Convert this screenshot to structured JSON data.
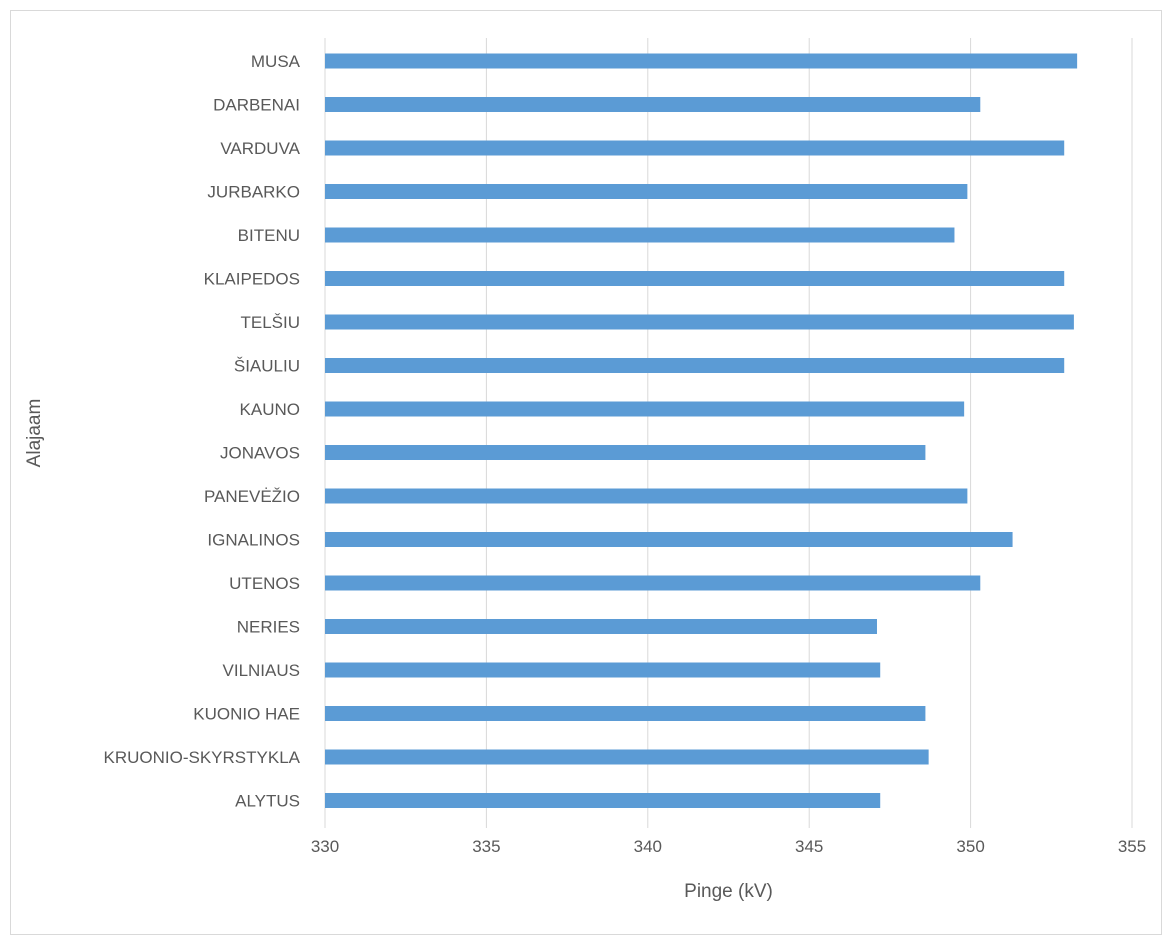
{
  "chart_data": {
    "type": "bar",
    "orientation": "horizontal",
    "title": "",
    "xlabel": "Pinge (kV)",
    "ylabel": "Alajaam",
    "xlim": [
      330,
      355
    ],
    "xticks": [
      330,
      335,
      340,
      345,
      350,
      355
    ],
    "grid": "vertical",
    "legend": "none",
    "bar_color": "#5B9BD5",
    "categories": [
      "MUSA",
      "DARBENAI",
      "VARDUVA",
      "JURBARKO",
      "BITENU",
      "KLAIPEDOS",
      "TELŠIU",
      "ŠIAULIU",
      "KAUNO",
      "JONAVOS",
      "PANEVĖŽIO",
      "IGNALINOS",
      "UTENOS",
      "NERIES",
      "VILNIAUS",
      "KUONIO HAE",
      "KRUONIO-SKYRSTYKLA",
      "ALYTUS"
    ],
    "values": [
      353.3,
      350.3,
      352.9,
      349.9,
      349.5,
      352.9,
      353.2,
      352.9,
      349.8,
      348.6,
      349.9,
      351.3,
      350.3,
      347.1,
      347.2,
      348.6,
      348.7,
      347.2
    ]
  }
}
